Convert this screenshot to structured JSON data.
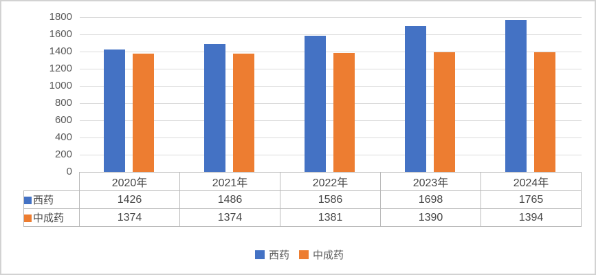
{
  "figure": {
    "background": "#ffffff",
    "border_color": "#d2d2d2",
    "gridline_color": "#dadada",
    "axis_text_color": "#595959",
    "table_text_color": "#454545",
    "table_border_color": "#b9b9b9"
  },
  "chart_data": {
    "type": "bar",
    "title": "",
    "xlabel": "",
    "ylabel": "",
    "categories": [
      "2020年",
      "2021年",
      "2022年",
      "2023年",
      "2024年"
    ],
    "series": [
      {
        "name": "西药",
        "color": "#4472C4",
        "values": [
          1426,
          1486,
          1586,
          1698,
          1765
        ]
      },
      {
        "name": "中成药",
        "color": "#ED7D31",
        "values": [
          1374,
          1374,
          1381,
          1390,
          1394
        ]
      }
    ],
    "ylim": [
      0,
      1800
    ],
    "ytick_step": 200,
    "ytick_labels": [
      "0",
      "200",
      "400",
      "600",
      "800",
      "1000",
      "1200",
      "1400",
      "1600",
      "1800"
    ],
    "grid": true,
    "legend_position": "bottom",
    "show_data_table": true
  }
}
